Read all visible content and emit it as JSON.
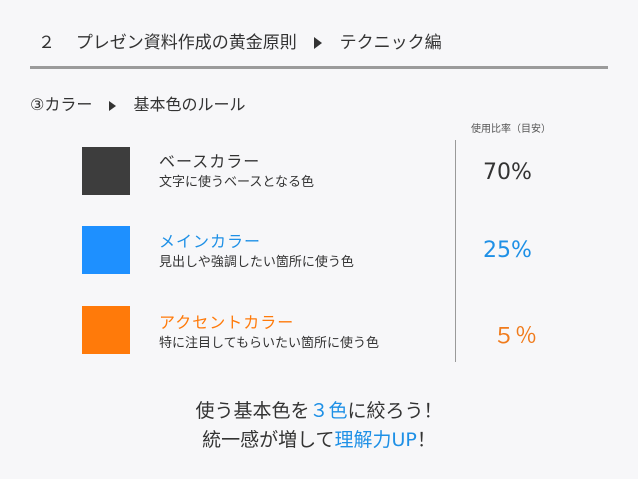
{
  "header": {
    "number": "２",
    "title": "プレゼン資料作成の黄金原則",
    "subtitle": "テクニック編"
  },
  "section": {
    "title": "③カラー",
    "subtitle": "基本色のルール"
  },
  "guide_label": "使用比率（目安）",
  "colors": [
    {
      "title": "ベースカラー",
      "description": "文字に使うベースとなる色",
      "ratio": "70%",
      "swatch": "#3d3d3d",
      "title_color": "#333333",
      "ratio_color": "#333333"
    },
    {
      "title": "メインカラー",
      "description": "見出しや強調したい箇所に使う色",
      "ratio": "25%",
      "swatch": "#1e90ff",
      "title_color": "#1e90e6",
      "ratio_color": "#1e90e6"
    },
    {
      "title": "アクセントカラー",
      "description": "特に注目してもらいたい箇所に使う色",
      "ratio": "５％",
      "swatch": "#ff7a0a",
      "title_color": "#ff7a0a",
      "ratio_color": "#f07b1c"
    }
  ],
  "footer": {
    "line1_pre": "使う基本色を",
    "line1_highlight": "３色",
    "line1_post": "に絞ろう！",
    "line2_pre": "統一感が増して",
    "line2_highlight": "理解力UP",
    "line2_post": "！"
  }
}
